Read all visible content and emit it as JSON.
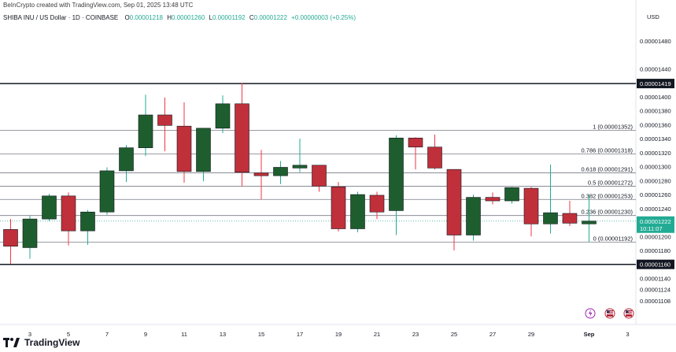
{
  "header": {
    "created_by": "BeInCrypto created with TradingView.com, Sep 01, 2025 13:48 UTC",
    "symbol": "SHIBA INU / US Dollar · 1D · COINBASE",
    "o_label": "O",
    "o_value": "0.00001218",
    "h_label": "H",
    "h_value": "0.00001260",
    "l_label": "L",
    "l_value": "0.00001192",
    "c_label": "C",
    "c_value": "0.00001222",
    "change": "+0.00000003 (+0.25%)"
  },
  "currency": "USD",
  "brand": "TradingView",
  "colors": {
    "up": "#1e5e2e",
    "down": "#c0303a",
    "wick_up": "#22ab94",
    "wick_down": "#f23645",
    "text": "#131722"
  },
  "chart_data": {
    "type": "candlestick",
    "title": "SHIBA INU / US Dollar · 1D · COINBASE",
    "ylim": [
      1.1e-05,
      1.5e-05
    ],
    "y_ticks": [
      "0.00001480",
      "0.00001440",
      "0.00001400",
      "0.00001380",
      "0.00001360",
      "0.00001340",
      "0.00001320",
      "0.00001300",
      "0.00001280",
      "0.00001260",
      "0.00001240",
      "0.00001200",
      "0.00001180",
      "0.00001140",
      "0.00001124",
      "0.00001108"
    ],
    "y_tick_values": [
      1.48e-05,
      1.44e-05,
      1.4e-05,
      1.38e-05,
      1.36e-05,
      1.34e-05,
      1.32e-05,
      1.3e-05,
      1.28e-05,
      1.26e-05,
      1.24e-05,
      1.2e-05,
      1.18e-05,
      1.14e-05,
      1.124e-05,
      1.108e-05
    ],
    "x_ticks": [
      "3",
      "5",
      "7",
      "9",
      "11",
      "13",
      "15",
      "17",
      "19",
      "21",
      "23",
      "25",
      "27",
      "29",
      "Sep",
      "3"
    ],
    "x_tick_days": [
      3,
      5,
      7,
      9,
      11,
      13,
      15,
      17,
      19,
      21,
      23,
      25,
      27,
      29,
      32,
      34
    ],
    "price_label": {
      "value": "0.00001222",
      "countdown": "10:11:07"
    },
    "levels": [
      {
        "value": 1.419e-05,
        "text": "0.00001419",
        "style": "bold"
      },
      {
        "value": 1.16e-05,
        "text": "0.00001160",
        "style": "bold"
      }
    ],
    "fib_levels": [
      {
        "value": 1.352e-05,
        "text": "1 (0.00001352)"
      },
      {
        "value": 1.318e-05,
        "text": "0.786 (0.00001318)"
      },
      {
        "value": 1.291e-05,
        "text": "0.618 (0.00001291)"
      },
      {
        "value": 1.272e-05,
        "text": "0.5 (0.00001272)"
      },
      {
        "value": 1.253e-05,
        "text": "0.382 (0.00001253)"
      },
      {
        "value": 1.23e-05,
        "text": "0.236 (0.00001230)"
      },
      {
        "value": 1.192e-05,
        "text": "0 (0.00001192)"
      }
    ],
    "event_icons": [
      "flash-icon",
      "flag-icon",
      "flag-icon"
    ],
    "candles": [
      {
        "day": 2,
        "o": 1.21e-05,
        "h": 1.225e-05,
        "l": 1.161e-05,
        "c": 1.186e-05
      },
      {
        "day": 3,
        "o": 1.184e-05,
        "h": 1.23e-05,
        "l": 1.168e-05,
        "c": 1.225e-05
      },
      {
        "day": 4,
        "o": 1.225e-05,
        "h": 1.261e-05,
        "l": 1.222e-05,
        "c": 1.258e-05
      },
      {
        "day": 5,
        "o": 1.258e-05,
        "h": 1.263e-05,
        "l": 1.187e-05,
        "c": 1.208e-05
      },
      {
        "day": 6,
        "o": 1.208e-05,
        "h": 1.238e-05,
        "l": 1.188e-05,
        "c": 1.235e-05
      },
      {
        "day": 7,
        "o": 1.235e-05,
        "h": 1.299e-05,
        "l": 1.231e-05,
        "c": 1.294e-05
      },
      {
        "day": 8,
        "o": 1.294e-05,
        "h": 1.331e-05,
        "l": 1.278e-05,
        "c": 1.327e-05
      },
      {
        "day": 9,
        "o": 1.327e-05,
        "h": 1.403e-05,
        "l": 1.315e-05,
        "c": 1.374e-05
      },
      {
        "day": 10,
        "o": 1.374e-05,
        "h": 1.399e-05,
        "l": 1.322e-05,
        "c": 1.359e-05
      },
      {
        "day": 11,
        "o": 1.358e-05,
        "h": 1.392e-05,
        "l": 1.277e-05,
        "c": 1.293e-05
      },
      {
        "day": 12,
        "o": 1.293e-05,
        "h": 1.355e-05,
        "l": 1.279e-05,
        "c": 1.355e-05
      },
      {
        "day": 13,
        "o": 1.355e-05,
        "h": 1.402e-05,
        "l": 1.348e-05,
        "c": 1.39e-05
      },
      {
        "day": 14,
        "o": 1.39e-05,
        "h": 1.42e-05,
        "l": 1.272e-05,
        "c": 1.292e-05
      },
      {
        "day": 15,
        "o": 1.291e-05,
        "h": 1.324e-05,
        "l": 1.253e-05,
        "c": 1.287e-05
      },
      {
        "day": 16,
        "o": 1.287e-05,
        "h": 1.308e-05,
        "l": 1.275e-05,
        "c": 1.299e-05
      },
      {
        "day": 17,
        "o": 1.298e-05,
        "h": 1.34e-05,
        "l": 1.292e-05,
        "c": 1.302e-05
      },
      {
        "day": 18,
        "o": 1.302e-05,
        "h": 1.302e-05,
        "l": 1.264e-05,
        "c": 1.272e-05
      },
      {
        "day": 19,
        "o": 1.271e-05,
        "h": 1.278e-05,
        "l": 1.207e-05,
        "c": 1.211e-05
      },
      {
        "day": 20,
        "o": 1.211e-05,
        "h": 1.264e-05,
        "l": 1.206e-05,
        "c": 1.26e-05
      },
      {
        "day": 21,
        "o": 1.259e-05,
        "h": 1.264e-05,
        "l": 1.225e-05,
        "c": 1.235e-05
      },
      {
        "day": 22,
        "o": 1.237e-05,
        "h": 1.345e-05,
        "l": 1.202e-05,
        "c": 1.341e-05
      },
      {
        "day": 23,
        "o": 1.341e-05,
        "h": 1.342e-05,
        "l": 1.296e-05,
        "c": 1.328e-05
      },
      {
        "day": 24,
        "o": 1.328e-05,
        "h": 1.346e-05,
        "l": 1.296e-05,
        "c": 1.298e-05
      },
      {
        "day": 25,
        "o": 1.296e-05,
        "h": 1.296e-05,
        "l": 1.18e-05,
        "c": 1.202e-05
      },
      {
        "day": 26,
        "o": 1.202e-05,
        "h": 1.26e-05,
        "l": 1.194e-05,
        "c": 1.256e-05
      },
      {
        "day": 27,
        "o": 1.256e-05,
        "h": 1.263e-05,
        "l": 1.246e-05,
        "c": 1.251e-05
      },
      {
        "day": 28,
        "o": 1.251e-05,
        "h": 1.271e-05,
        "l": 1.247e-05,
        "c": 1.27e-05
      },
      {
        "day": 29,
        "o": 1.269e-05,
        "h": 1.271e-05,
        "l": 1.2e-05,
        "c": 1.218e-05
      },
      {
        "day": 30,
        "o": 1.218e-05,
        "h": 1.303e-05,
        "l": 1.204e-05,
        "c": 1.234e-05
      },
      {
        "day": 31,
        "o": 1.233e-05,
        "h": 1.251e-05,
        "l": 1.215e-05,
        "c": 1.219e-05
      },
      {
        "day": 32,
        "o": 1.218e-05,
        "h": 1.26e-05,
        "l": 1.192e-05,
        "c": 1.222e-05
      }
    ]
  }
}
